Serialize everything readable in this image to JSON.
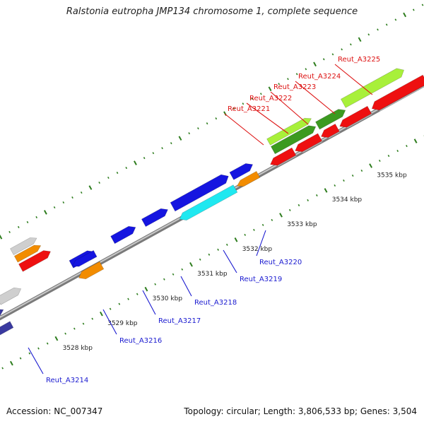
{
  "header": {
    "title": "Ralstonia eutropha JMP134 chromosome 1, complete sequence"
  },
  "footer": {
    "accession": "Accession: NC_007347",
    "topology": "Topology: circular; Length: 3,806,533 bp; Genes: 3,504"
  },
  "colors": {
    "backbone": "#9a9a9a",
    "tick": "#2e7d1e",
    "blue_gene": "#1515e0",
    "cyan_gene": "#1fe8f0",
    "orange_gene": "#f28c00",
    "red_gene": "#ee1010",
    "lime_gene": "#a8f03a",
    "darkgreen_gene": "#3c9a20",
    "gray_gene": "#cfcfcf",
    "navy_gene": "#3a3aa0",
    "blue_label": "#1a1ad0",
    "red_label": "#dd1111"
  },
  "scale": {
    "unit": "kbp",
    "ticks": [
      {
        "value": 3528,
        "label": "3528 kbp"
      },
      {
        "value": 3529,
        "label": "3529 kbp"
      },
      {
        "value": 3530,
        "label": "3530 kbp"
      },
      {
        "value": 3531,
        "label": "3531 kbp"
      },
      {
        "value": 3532,
        "label": "3532 kbp"
      },
      {
        "value": 3533,
        "label": "3533 kbp"
      },
      {
        "value": 3534,
        "label": "3534 kbp"
      },
      {
        "value": 3535,
        "label": "3535 kbp"
      }
    ]
  },
  "genes": {
    "labeled": [
      {
        "name": "Reut_A3214",
        "color": "blue"
      },
      {
        "name": "Reut_A3216",
        "color": "blue"
      },
      {
        "name": "Reut_A3217",
        "color": "blue"
      },
      {
        "name": "Reut_A3218",
        "color": "blue"
      },
      {
        "name": "Reut_A3219",
        "color": "blue"
      },
      {
        "name": "Reut_A3220",
        "color": "blue"
      },
      {
        "name": "Reut_A3221",
        "color": "red"
      },
      {
        "name": "Reut_A3222",
        "color": "red"
      },
      {
        "name": "Reut_A3223",
        "color": "red"
      },
      {
        "name": "Reut_A3224",
        "color": "red"
      },
      {
        "name": "Reut_A3225",
        "color": "red"
      }
    ]
  }
}
